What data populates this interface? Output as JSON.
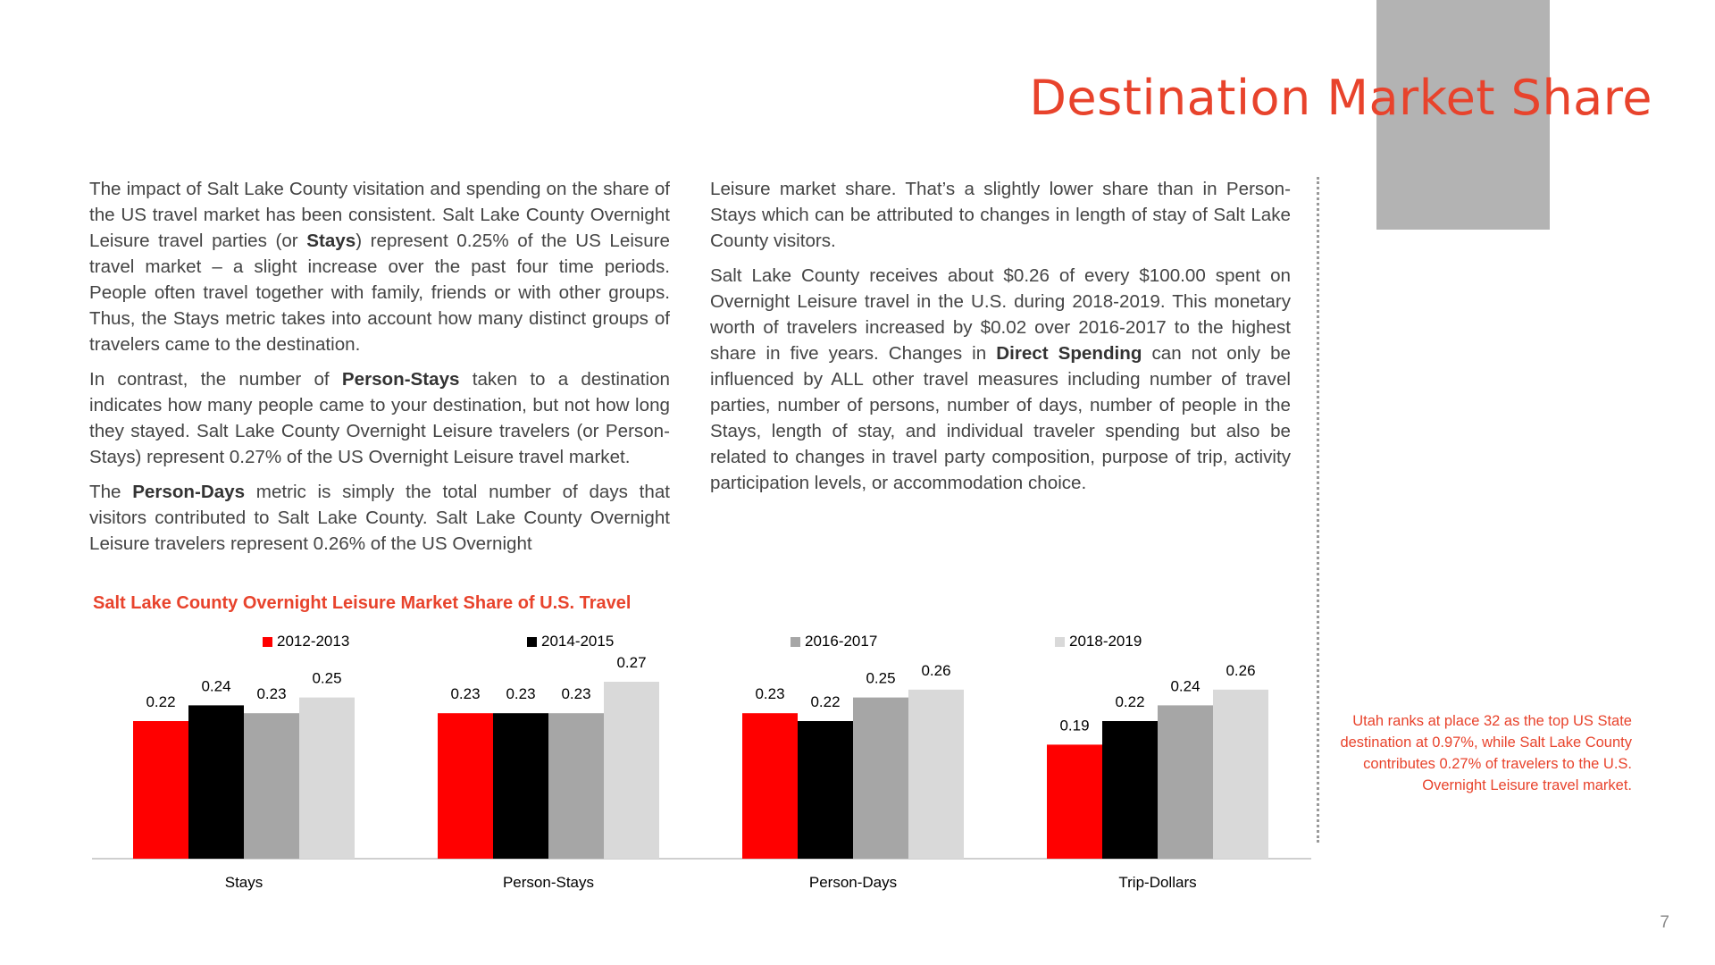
{
  "page": {
    "title": "Destination Market Share",
    "page_number": "7",
    "note": "Utah ranks at place 32 as the top US State destination at 0.97%, while Salt Lake County contributes 0.27% of travelers to the U.S. Overnight Leisure travel market."
  },
  "text": {
    "left": [
      [
        {
          "t": "The impact of Salt Lake County visitation and spending on the share of the US travel market has been consistent. Salt Lake County Overnight Leisure travel parties (or "
        },
        {
          "t": "Stays",
          "b": true
        },
        {
          "t": ") represent 0.25% of the US Leisure travel market – a slight increase over the past four time periods. People often travel together with family, friends or with other groups. Thus, the Stays metric takes into account how many distinct groups of travelers came to the destination."
        }
      ],
      [
        {
          "t": "In contrast, the number of "
        },
        {
          "t": "Person-Stays",
          "b": true
        },
        {
          "t": " taken to a destination indicates how many people came to your destination, but not how long they stayed. Salt Lake County Overnight Leisure travelers (or Person-Stays) represent 0.27% of the US Overnight Leisure travel market."
        }
      ],
      [
        {
          "t": "The "
        },
        {
          "t": "Person-Days",
          "b": true
        },
        {
          "t": " metric is simply the total number of days that visitors contributed to Salt Lake County. Salt Lake County Overnight Leisure travelers represent 0.26% of the US Overnight"
        }
      ]
    ],
    "right": [
      [
        {
          "t": "Leisure market share. That’s a slightly lower share than in Person-Stays which can be attributed to changes in length of stay of Salt Lake County visitors."
        }
      ],
      [
        {
          "t": "Salt Lake County receives about $0.26 of every $100.00 spent on Overnight Leisure travel in the U.S. during 2018-2019. This monetary worth of travelers increased by $0.02 over 2016-2017 to the highest share in five years. Changes in "
        },
        {
          "t": "Direct Spending",
          "b": true
        },
        {
          "t": " can not only be influenced by ALL other travel measures including number of travel parties, number of persons, number of days, number of people in the Stays, length of stay, and individual traveler spending but also be related to changes in travel party composition, purpose of trip, activity participation levels,  or accommodation choice."
        }
      ]
    ]
  },
  "chart_data": {
    "type": "bar",
    "title": "Salt Lake County Overnight Leisure Market Share of U.S. Travel",
    "categories": [
      "Stays",
      "Person-Stays",
      "Person-Days",
      "Trip-Dollars"
    ],
    "series": [
      {
        "name": "2012-2013",
        "color": "#ff0000",
        "values": [
          0.22,
          0.23,
          0.23,
          0.19
        ],
        "labels": [
          "0.22",
          "0.23",
          "0.23",
          "0.19"
        ]
      },
      {
        "name": "2014-2015",
        "color": "#000000",
        "values": [
          0.24,
          0.23,
          0.22,
          0.22
        ],
        "labels": [
          "0.24",
          "0.23",
          "0.22",
          "0.22"
        ]
      },
      {
        "name": "2016-2017",
        "color": "#a6a6a6",
        "values": [
          0.23,
          0.23,
          0.25,
          0.24
        ],
        "labels": [
          "0.23",
          "0.23",
          "0.25",
          "0.24"
        ]
      },
      {
        "name": "2018-2019",
        "color": "#d9d9d9",
        "values": [
          0.25,
          0.27,
          0.26,
          0.26
        ],
        "labels": [
          "0.25",
          "0.27",
          "0.26",
          "0.26"
        ]
      }
    ],
    "xlabel": "",
    "ylabel": "",
    "ylim": [
      0.045,
      0.27
    ],
    "legend": "top",
    "grid": false
  }
}
